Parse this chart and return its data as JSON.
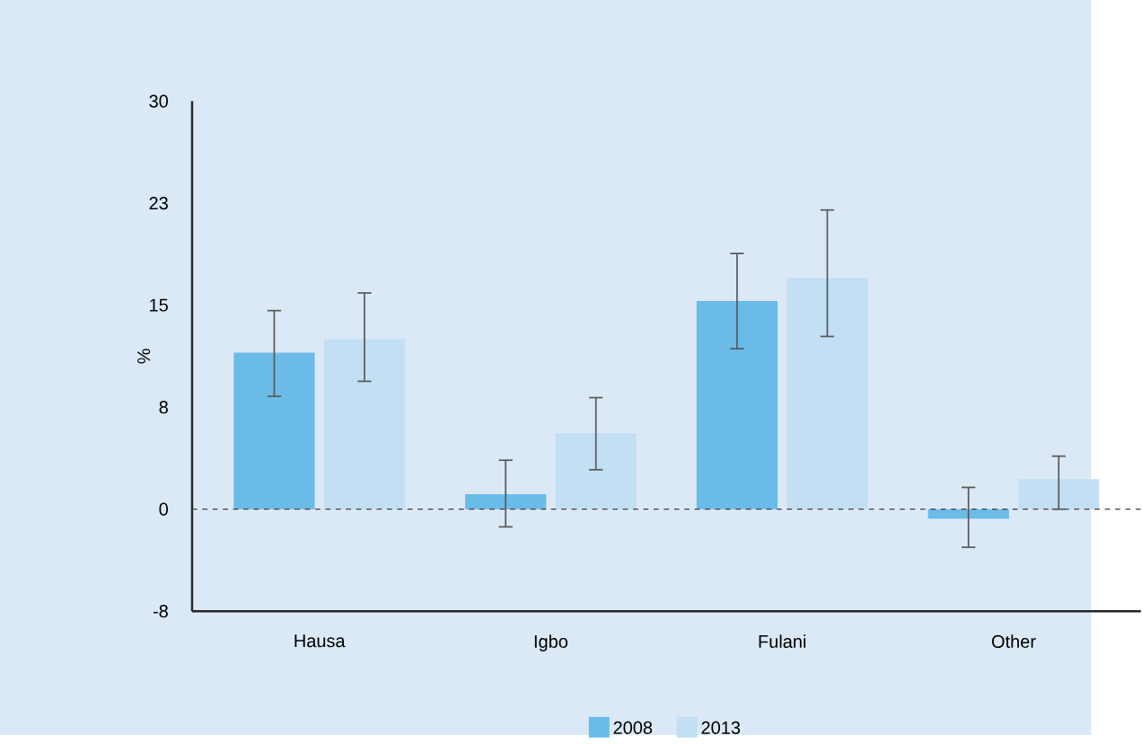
{
  "chart_data": {
    "type": "bar",
    "ylabel": "%",
    "categories": [
      "Hausa",
      "Igbo",
      "Fulani",
      "Other"
    ],
    "series": [
      {
        "name": "2008",
        "color": "#6abbe8",
        "values": [
          11.5,
          1.1,
          15.3,
          -0.7
        ],
        "errors": [
          [
            8.3,
            14.6
          ],
          [
            -1.3,
            3.6
          ],
          [
            11.8,
            18.8
          ],
          [
            -2.8,
            1.6
          ]
        ]
      },
      {
        "name": "2013",
        "color": "#c3dff4",
        "values": [
          12.5,
          5.6,
          17.0,
          2.2
        ],
        "errors": [
          [
            9.4,
            15.9
          ],
          [
            2.9,
            8.2
          ],
          [
            12.7,
            22.0
          ],
          [
            0,
            3.9
          ]
        ]
      }
    ],
    "ylim": [
      -7.5,
      30
    ],
    "yticks": [
      30,
      {
        "value": 22.5,
        "label": "23"
      },
      15,
      {
        "value": 7.5,
        "label": "8"
      },
      0,
      {
        "value": -7.5,
        "label": "-8"
      }
    ],
    "ref_lines": [
      {
        "axis": "y",
        "value": 0,
        "line_style": "dashed"
      }
    ],
    "grid": false,
    "legend": "bottom"
  }
}
